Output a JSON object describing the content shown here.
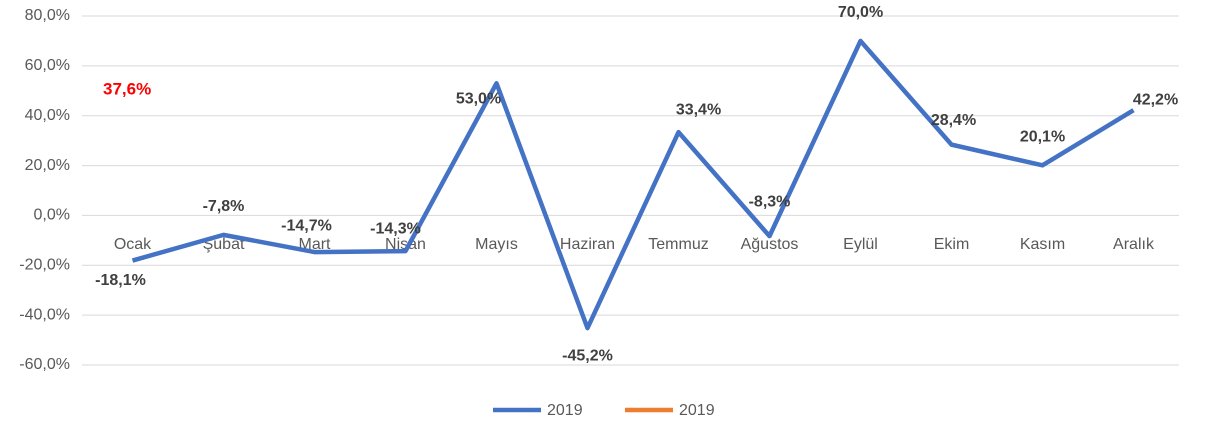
{
  "chart_data": {
    "type": "line",
    "categories": [
      "Ocak",
      "Şubat",
      "Mart",
      "Nisan",
      "Mayıs",
      "Haziran",
      "Temmuz",
      "Ağustos",
      "Eylül",
      "Ekim",
      "Kasım",
      "Aralık"
    ],
    "series": [
      {
        "name": "2019",
        "color": "#4472c4",
        "values": [
          -18.1,
          -7.8,
          -14.7,
          -14.3,
          53.0,
          -45.2,
          33.4,
          -8.3,
          70.0,
          28.4,
          20.1,
          42.2
        ],
        "value_labels": [
          "-18,1%",
          "-7,8%",
          "-14,7%",
          "-14,3%",
          "53,0%",
          "-45,2%",
          "33,4%",
          "-8,3%",
          "70,0%",
          "28,4%",
          "20,1%",
          "42,2%"
        ]
      },
      {
        "name": "2019",
        "color": "#ed7d31",
        "values": [
          null,
          null,
          null,
          null,
          null,
          null,
          null,
          null,
          null,
          null,
          null,
          null
        ]
      }
    ],
    "annotation": "37,6%",
    "ylim": [
      -60,
      80
    ],
    "yticks": [
      {
        "value": -60,
        "label": "-60,0%"
      },
      {
        "value": -40,
        "label": "-40,0%"
      },
      {
        "value": -20,
        "label": "-20,0%"
      },
      {
        "value": 0,
        "label": "0,0%"
      },
      {
        "value": 20,
        "label": "20,0%"
      },
      {
        "value": 40,
        "label": "40,0%"
      },
      {
        "value": 60,
        "label": "60,0%"
      },
      {
        "value": 80,
        "label": "80,0%"
      }
    ],
    "grid": true,
    "legend": "bottom"
  }
}
